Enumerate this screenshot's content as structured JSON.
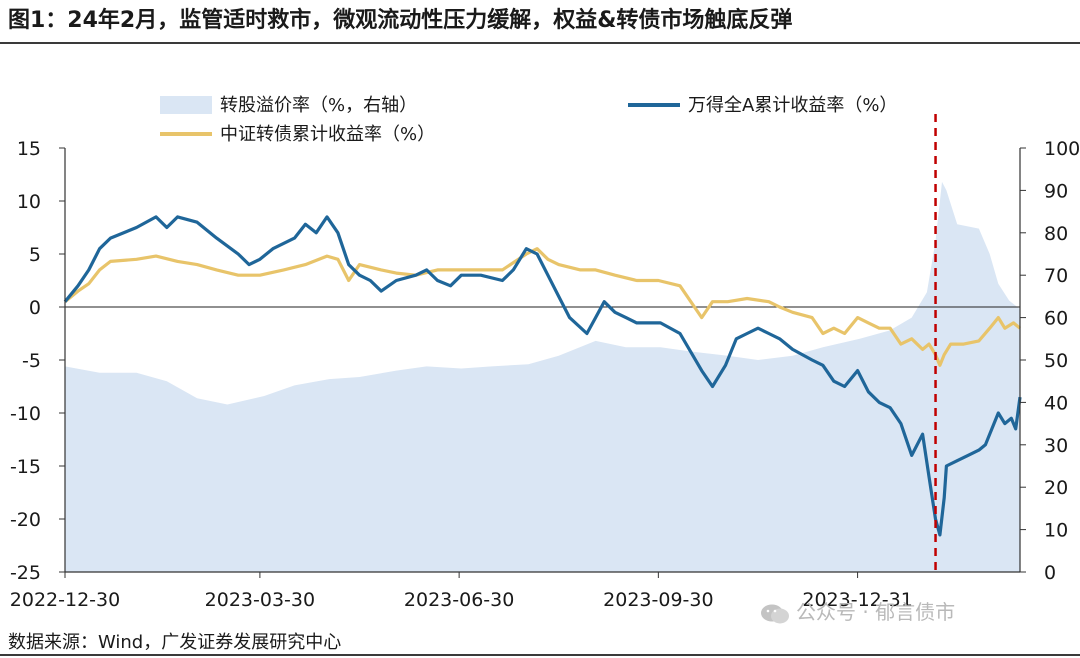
{
  "title": "图1：24年2月，监管适时救市，微观流动性压力缓解，权益&转债市场触底反弹",
  "source": "数据来源：Wind，广发证券发展研究中心",
  "watermark": "公众号 · 郁言债市",
  "colors": {
    "premium_fill": "#dae6f4",
    "wind_line": "#1f6699",
    "cb_line": "#e8c46a",
    "marker": "#c00000",
    "axis": "#333333"
  },
  "chart_data": {
    "type": "line",
    "x_tick_labels": [
      "2022-12-30",
      "2023-03-30",
      "2023-06-30",
      "2023-09-30",
      "2023-12-31"
    ],
    "x_ticks": [
      "2022-12-30",
      "2023-03-30",
      "2023-06-30",
      "2023-09-30",
      "2023-12-31"
    ],
    "x_range": [
      "2022-12-30",
      "2024-03-15"
    ],
    "y_left": {
      "range": [
        -25,
        15
      ],
      "ticks": [
        15,
        10,
        5,
        0,
        -5,
        -10,
        -15,
        -20,
        -25
      ]
    },
    "y_right": {
      "range": [
        0,
        100
      ],
      "ticks": [
        100,
        90,
        80,
        70,
        60,
        50,
        40,
        30,
        20,
        10,
        0
      ]
    },
    "legend_position": "top",
    "marker_line": {
      "date": "2024-02-05",
      "style": "dashed"
    },
    "series": [
      {
        "name": "转股溢价率（%，右轴）",
        "type": "area",
        "axis": "right",
        "points": [
          [
            "2022-12-30",
            48.5
          ],
          [
            "2023-01-15",
            47
          ],
          [
            "2023-02-01",
            47
          ],
          [
            "2023-02-15",
            45
          ],
          [
            "2023-03-01",
            41
          ],
          [
            "2023-03-15",
            39.5
          ],
          [
            "2023-04-01",
            41.5
          ],
          [
            "2023-04-15",
            44
          ],
          [
            "2023-05-01",
            45.5
          ],
          [
            "2023-05-15",
            46
          ],
          [
            "2023-06-01",
            47.5
          ],
          [
            "2023-06-15",
            48.5
          ],
          [
            "2023-07-01",
            48
          ],
          [
            "2023-07-15",
            48.5
          ],
          [
            "2023-08-01",
            49
          ],
          [
            "2023-08-15",
            51
          ],
          [
            "2023-09-01",
            54.5
          ],
          [
            "2023-09-15",
            53
          ],
          [
            "2023-10-01",
            53
          ],
          [
            "2023-10-15",
            52
          ],
          [
            "2023-11-01",
            51
          ],
          [
            "2023-11-15",
            50
          ],
          [
            "2023-12-01",
            51
          ],
          [
            "2023-12-15",
            53
          ],
          [
            "2024-01-01",
            55
          ],
          [
            "2024-01-15",
            57
          ],
          [
            "2024-01-25",
            60
          ],
          [
            "2024-02-01",
            66
          ],
          [
            "2024-02-05",
            78
          ],
          [
            "2024-02-08",
            92
          ],
          [
            "2024-02-10",
            90
          ],
          [
            "2024-02-15",
            82
          ],
          [
            "2024-02-25",
            81
          ],
          [
            "2024-03-01",
            75
          ],
          [
            "2024-03-05",
            68
          ],
          [
            "2024-03-10",
            64
          ],
          [
            "2024-03-15",
            62
          ]
        ]
      },
      {
        "name": "万得全A累计收益率（%）",
        "type": "line",
        "axis": "left",
        "points": [
          [
            "2022-12-30",
            0.5
          ],
          [
            "2023-01-05",
            2
          ],
          [
            "2023-01-10",
            3.5
          ],
          [
            "2023-01-15",
            5.5
          ],
          [
            "2023-01-20",
            6.5
          ],
          [
            "2023-02-01",
            7.5
          ],
          [
            "2023-02-10",
            8.5
          ],
          [
            "2023-02-15",
            7.5
          ],
          [
            "2023-02-20",
            8.5
          ],
          [
            "2023-03-01",
            8
          ],
          [
            "2023-03-10",
            6.5
          ],
          [
            "2023-03-20",
            5
          ],
          [
            "2023-03-25",
            4
          ],
          [
            "2023-03-30",
            4.5
          ],
          [
            "2023-04-05",
            5.5
          ],
          [
            "2023-04-15",
            6.5
          ],
          [
            "2023-04-20",
            7.8
          ],
          [
            "2023-04-25",
            7
          ],
          [
            "2023-04-30",
            8.5
          ],
          [
            "2023-05-05",
            7
          ],
          [
            "2023-05-10",
            4
          ],
          [
            "2023-05-15",
            3
          ],
          [
            "2023-05-20",
            2.5
          ],
          [
            "2023-05-25",
            1.5
          ],
          [
            "2023-06-01",
            2.5
          ],
          [
            "2023-06-10",
            3
          ],
          [
            "2023-06-15",
            3.5
          ],
          [
            "2023-06-20",
            2.5
          ],
          [
            "2023-06-26",
            2
          ],
          [
            "2023-07-01",
            3
          ],
          [
            "2023-07-10",
            3
          ],
          [
            "2023-07-20",
            2.5
          ],
          [
            "2023-07-25",
            3.5
          ],
          [
            "2023-07-31",
            5.5
          ],
          [
            "2023-08-05",
            5
          ],
          [
            "2023-08-10",
            3
          ],
          [
            "2023-08-15",
            1
          ],
          [
            "2023-08-20",
            -1
          ],
          [
            "2023-08-28",
            -2.5
          ],
          [
            "2023-09-01",
            -1
          ],
          [
            "2023-09-05",
            0.5
          ],
          [
            "2023-09-10",
            -0.5
          ],
          [
            "2023-09-15",
            -1
          ],
          [
            "2023-09-20",
            -1.5
          ],
          [
            "2023-09-25",
            -1.5
          ],
          [
            "2023-10-01",
            -1.5
          ],
          [
            "2023-10-10",
            -2.5
          ],
          [
            "2023-10-20",
            -6
          ],
          [
            "2023-10-25",
            -7.5
          ],
          [
            "2023-10-31",
            -5.5
          ],
          [
            "2023-11-05",
            -3
          ],
          [
            "2023-11-10",
            -2.5
          ],
          [
            "2023-11-15",
            -2
          ],
          [
            "2023-11-20",
            -2.5
          ],
          [
            "2023-11-25",
            -3
          ],
          [
            "2023-12-01",
            -4
          ],
          [
            "2023-12-10",
            -5
          ],
          [
            "2023-12-15",
            -5.5
          ],
          [
            "2023-12-20",
            -7
          ],
          [
            "2023-12-25",
            -7.5
          ],
          [
            "2023-12-31",
            -6
          ],
          [
            "2024-01-05",
            -8
          ],
          [
            "2024-01-10",
            -9
          ],
          [
            "2024-01-15",
            -9.5
          ],
          [
            "2024-01-20",
            -11
          ],
          [
            "2024-01-25",
            -14
          ],
          [
            "2024-01-30",
            -12
          ],
          [
            "2024-02-02",
            -16
          ],
          [
            "2024-02-05",
            -20
          ],
          [
            "2024-02-07",
            -21.5
          ],
          [
            "2024-02-09",
            -18
          ],
          [
            "2024-02-10",
            -15
          ],
          [
            "2024-02-15",
            -14.5
          ],
          [
            "2024-02-20",
            -14
          ],
          [
            "2024-02-25",
            -13.5
          ],
          [
            "2024-02-28",
            -13
          ],
          [
            "2024-03-01",
            -12
          ],
          [
            "2024-03-05",
            -10
          ],
          [
            "2024-03-08",
            -11
          ],
          [
            "2024-03-11",
            -10.5
          ],
          [
            "2024-03-13",
            -11.5
          ],
          [
            "2024-03-15",
            -8.5
          ]
        ]
      },
      {
        "name": "中证转债累计收益率（%）",
        "type": "line",
        "axis": "left",
        "points": [
          [
            "2022-12-30",
            0.5
          ],
          [
            "2023-01-05",
            1.5
          ],
          [
            "2023-01-10",
            2.2
          ],
          [
            "2023-01-15",
            3.5
          ],
          [
            "2023-01-20",
            4.3
          ],
          [
            "2023-02-01",
            4.5
          ],
          [
            "2023-02-10",
            4.8
          ],
          [
            "2023-02-20",
            4.3
          ],
          [
            "2023-03-01",
            4
          ],
          [
            "2023-03-10",
            3.5
          ],
          [
            "2023-03-20",
            3
          ],
          [
            "2023-03-30",
            3
          ],
          [
            "2023-04-10",
            3.5
          ],
          [
            "2023-04-20",
            4
          ],
          [
            "2023-04-30",
            4.8
          ],
          [
            "2023-05-05",
            4.5
          ],
          [
            "2023-05-10",
            2.5
          ],
          [
            "2023-05-15",
            4
          ],
          [
            "2023-05-25",
            3.5
          ],
          [
            "2023-06-01",
            3.2
          ],
          [
            "2023-06-10",
            3
          ],
          [
            "2023-06-20",
            3.5
          ],
          [
            "2023-06-30",
            3.5
          ],
          [
            "2023-07-10",
            3.5
          ],
          [
            "2023-07-20",
            3.5
          ],
          [
            "2023-07-31",
            5
          ],
          [
            "2023-08-05",
            5.5
          ],
          [
            "2023-08-10",
            4.5
          ],
          [
            "2023-08-15",
            4
          ],
          [
            "2023-08-25",
            3.5
          ],
          [
            "2023-09-01",
            3.5
          ],
          [
            "2023-09-10",
            3
          ],
          [
            "2023-09-20",
            2.5
          ],
          [
            "2023-09-30",
            2.5
          ],
          [
            "2023-10-10",
            2
          ],
          [
            "2023-10-20",
            -1
          ],
          [
            "2023-10-25",
            0.5
          ],
          [
            "2023-11-01",
            0.5
          ],
          [
            "2023-11-10",
            0.8
          ],
          [
            "2023-11-20",
            0.5
          ],
          [
            "2023-11-25",
            0
          ],
          [
            "2023-12-01",
            -0.5
          ],
          [
            "2023-12-10",
            -1
          ],
          [
            "2023-12-15",
            -2.5
          ],
          [
            "2023-12-20",
            -2
          ],
          [
            "2023-12-25",
            -2.5
          ],
          [
            "2023-12-31",
            -1
          ],
          [
            "2024-01-05",
            -1.5
          ],
          [
            "2024-01-10",
            -2
          ],
          [
            "2024-01-15",
            -2
          ],
          [
            "2024-01-20",
            -3.5
          ],
          [
            "2024-01-25",
            -3
          ],
          [
            "2024-01-30",
            -4
          ],
          [
            "2024-02-02",
            -3.5
          ],
          [
            "2024-02-05",
            -4.5
          ],
          [
            "2024-02-07",
            -5.5
          ],
          [
            "2024-02-09",
            -4.5
          ],
          [
            "2024-02-12",
            -3.5
          ],
          [
            "2024-02-18",
            -3.5
          ],
          [
            "2024-02-25",
            -3.2
          ],
          [
            "2024-03-01",
            -2
          ],
          [
            "2024-03-05",
            -1
          ],
          [
            "2024-03-08",
            -2
          ],
          [
            "2024-03-12",
            -1.5
          ],
          [
            "2024-03-15",
            -2
          ]
        ]
      }
    ]
  }
}
